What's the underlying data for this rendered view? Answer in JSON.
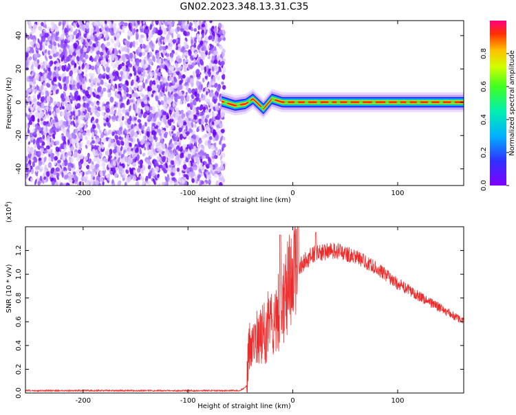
{
  "title": "GN02.2023.348.13.31.C35",
  "colors": {
    "snr_line": "#ee2a2a",
    "frame": "#000000",
    "background": "#ffffff"
  },
  "chart_data": [
    {
      "type": "heatmap",
      "name": "spectrogram",
      "xlabel": "Height of straight line (km)",
      "ylabel": "Frequency (Hz)",
      "xlim": [
        -255,
        163
      ],
      "ylim": [
        -50,
        49
      ],
      "x_ticks": [
        -200,
        -100,
        0,
        100
      ],
      "y_ticks": [
        -40,
        -20,
        0,
        20,
        40
      ],
      "colorbar": {
        "label": "Normalized spectral amplitude",
        "range": [
          0.0,
          1.0
        ],
        "ticks": [
          0.0,
          0.2,
          0.4,
          0.6,
          0.8
        ],
        "colormap": "rainbow (violet to red)"
      },
      "noise_region_km": [
        -255,
        -68
      ],
      "signal_band": {
        "start_km": -68,
        "end_km": 163,
        "center_hz": 0,
        "halfwidth_hz": 1.5,
        "wiggle_points": [
          {
            "x": -68,
            "y": 0.5
          },
          {
            "x": -55,
            "y": -2
          },
          {
            "x": -45,
            "y": -1
          },
          {
            "x": -38,
            "y": 2
          },
          {
            "x": -28,
            "y": -4
          },
          {
            "x": -20,
            "y": 2
          },
          {
            "x": -10,
            "y": 0
          },
          {
            "x": 10,
            "y": 0
          },
          {
            "x": 163,
            "y": 0
          }
        ]
      }
    },
    {
      "type": "line",
      "name": "snr",
      "xlabel": "Height of straight line (km)",
      "ylabel": "SNR (10 * v/v)",
      "y_exponent_label": "(x10",
      "y_exponent_power": "4",
      "y_exponent_close": ")",
      "xlim": [
        -255,
        163
      ],
      "ylim": [
        0,
        1.4
      ],
      "x_ticks": [
        -200,
        -100,
        0,
        100
      ],
      "y_ticks": [
        0.0,
        0.2,
        0.4,
        0.6,
        0.8,
        1.0,
        1.2
      ],
      "envelope": [
        {
          "x": -255,
          "y": 0.02
        },
        {
          "x": -150,
          "y": 0.02
        },
        {
          "x": -50,
          "y": 0.02
        },
        {
          "x": -44,
          "y": 0.06
        },
        {
          "x": -42,
          "y": 0.35
        },
        {
          "x": -30,
          "y": 0.45
        },
        {
          "x": -20,
          "y": 0.55
        },
        {
          "x": -10,
          "y": 0.7
        },
        {
          "x": 0,
          "y": 0.95
        },
        {
          "x": 10,
          "y": 1.1
        },
        {
          "x": 20,
          "y": 1.17
        },
        {
          "x": 40,
          "y": 1.2
        },
        {
          "x": 60,
          "y": 1.15
        },
        {
          "x": 80,
          "y": 1.05
        },
        {
          "x": 100,
          "y": 0.92
        },
        {
          "x": 120,
          "y": 0.82
        },
        {
          "x": 140,
          "y": 0.72
        },
        {
          "x": 163,
          "y": 0.6
        }
      ],
      "peaks": [
        {
          "x": -12,
          "y": 1.33
        },
        {
          "x": 5,
          "y": 1.4
        },
        {
          "x": 22,
          "y": 1.35
        }
      ]
    }
  ]
}
